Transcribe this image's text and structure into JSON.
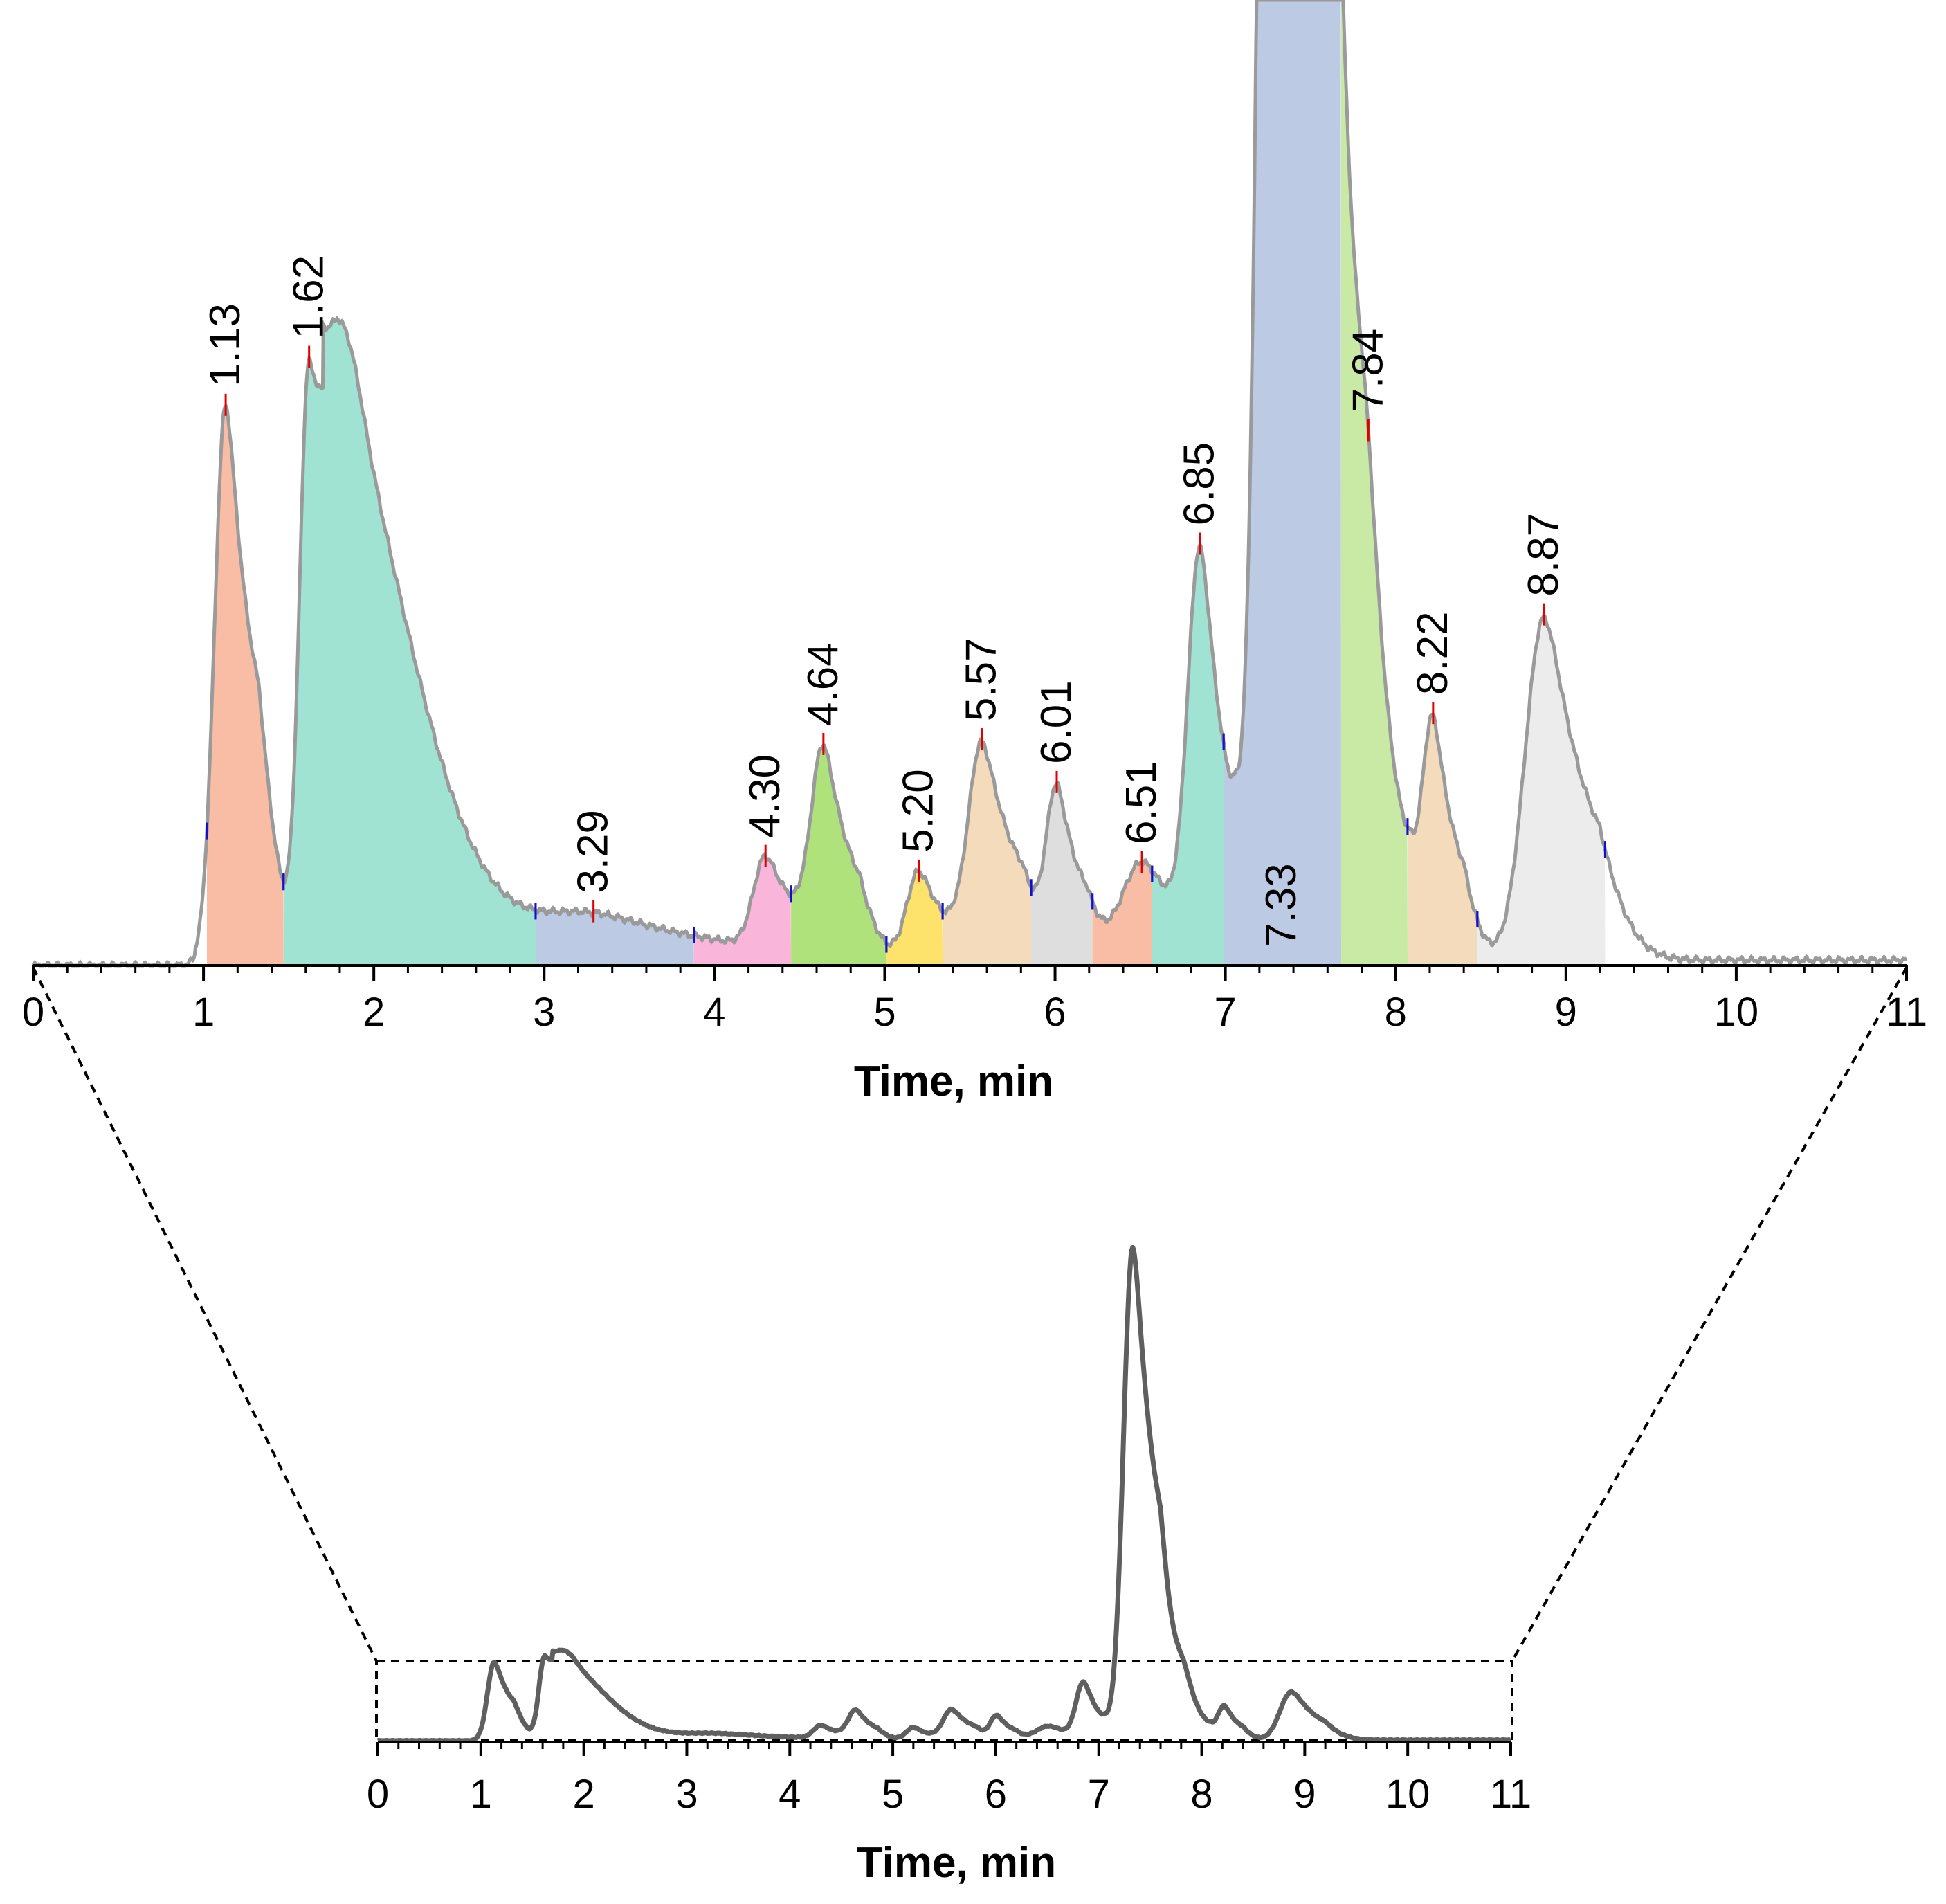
{
  "chart_data": [
    {
      "id": "detail",
      "type": "area",
      "description_role": "zoomed chromatogram with integrated peaks",
      "xlabel": "Time, min",
      "ylabel": "",
      "xlim": [
        0,
        11
      ],
      "ylim": [
        0,
        55
      ],
      "xticks": [
        "0",
        "1",
        "2",
        "3",
        "4",
        "5",
        "6",
        "7",
        "8",
        "9",
        "10",
        "11"
      ],
      "grid": false,
      "baseline_level": 0.3,
      "peaks": [
        {
          "rt": 1.13,
          "label": "1.13",
          "height": 31.6,
          "sigma": 0.065,
          "tail": 0.1,
          "start": 1.02,
          "end": 1.47,
          "color": "#f9bda5",
          "label_mode": "above"
        },
        {
          "rt": 1.62,
          "label": "1.62",
          "height": 33.8,
          "sigma": 0.055,
          "tail": 0.45,
          "start": 1.47,
          "end": 2.95,
          "color": "#a0e3d2",
          "label_mode": "above"
        },
        {
          "rt": 3.29,
          "label": "3.29",
          "height": 2.4,
          "sigma": 0.35,
          "tail": 0.35,
          "start": 2.95,
          "end": 3.88,
          "color": "#bccae3",
          "label_mode": "above"
        },
        {
          "rt": 4.3,
          "label": "4.30",
          "height": 5.1,
          "sigma": 0.07,
          "tail": 0.1,
          "start": 3.88,
          "end": 4.45,
          "color": "#f9b6da",
          "label_mode": "above"
        },
        {
          "rt": 4.64,
          "label": "4.64",
          "height": 11.2,
          "sigma": 0.07,
          "tail": 0.09,
          "start": 4.45,
          "end": 5.01,
          "color": "#afe27a",
          "label_mode": "above"
        },
        {
          "rt": 5.2,
          "label": "5.20",
          "height": 5.0,
          "sigma": 0.07,
          "tail": 0.08,
          "start": 5.01,
          "end": 5.34,
          "color": "#fde36b",
          "label_mode": "above"
        },
        {
          "rt": 5.57,
          "label": "5.57",
          "height": 12.2,
          "sigma": 0.08,
          "tail": 0.11,
          "start": 5.34,
          "end": 5.86,
          "color": "#f3dbbc",
          "label_mode": "above"
        },
        {
          "rt": 6.01,
          "label": "6.01",
          "height": 9.2,
          "sigma": 0.06,
          "tail": 0.08,
          "start": 5.86,
          "end": 6.22,
          "color": "#dedede",
          "label_mode": "above"
        },
        {
          "rt": 6.51,
          "label": "6.51",
          "height": 5.6,
          "sigma": 0.12,
          "tail": 0.12,
          "start": 6.22,
          "end": 6.57,
          "color": "#f9bda5",
          "label_mode": "above"
        },
        {
          "rt": 6.85,
          "label": "6.85",
          "height": 21.6,
          "sigma": 0.07,
          "tail": 0.08,
          "start": 6.57,
          "end": 6.99,
          "color": "#a0e3d2",
          "label_mode": "above"
        },
        {
          "rt": 7.33,
          "label": "7.33",
          "height": 200.0,
          "sigma": 0.09,
          "tail": 0.13,
          "start": 6.99,
          "end": 7.68,
          "color": "#bccae3",
          "label_mode": "inside"
        },
        {
          "rt": 7.84,
          "label": "7.84",
          "height": 16.5,
          "sigma": 0.08,
          "tail": 0.09,
          "start": 7.68,
          "end": 8.07,
          "color": "#c8eaa4",
          "label_mode": "above"
        },
        {
          "rt": 8.22,
          "label": "8.22",
          "height": 12.5,
          "sigma": 0.06,
          "tail": 0.08,
          "start": 8.07,
          "end": 8.48,
          "color": "#f3dbbc",
          "label_mode": "above"
        },
        {
          "rt": 8.87,
          "label": "8.87",
          "height": 19.5,
          "sigma": 0.11,
          "tail": 0.13,
          "start": 8.48,
          "end": 9.23,
          "color": "#ececec",
          "label_mode": "above"
        }
      ]
    },
    {
      "id": "overview",
      "type": "line",
      "description_role": "full-scale chromatogram",
      "xlabel": "Time, min",
      "ylabel": "",
      "xlim": [
        0,
        11
      ],
      "xticks": [
        "0",
        "1",
        "2",
        "3",
        "4",
        "5",
        "6",
        "7",
        "8",
        "9",
        "10",
        "11"
      ],
      "grid": false,
      "zoom_window_y_max": 55,
      "y_max": 460
    }
  ],
  "colors": {
    "trace_detail": "#9a9a9a",
    "trace_overview": "#5f5f5f",
    "apex_marker": "#e00000",
    "boundary_marker": "#1010d0",
    "axis": "#000000",
    "zoom_lines": "#000000"
  }
}
